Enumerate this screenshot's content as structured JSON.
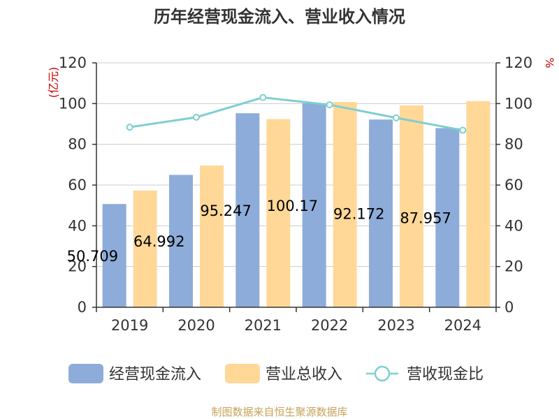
{
  "chart_data": {
    "type": "bar",
    "title": "历年经营现金流入、营业收入情况",
    "categories": [
      "2019",
      "2020",
      "2021",
      "2022",
      "2023",
      "2024"
    ],
    "series": [
      {
        "name": "经营现金流入",
        "type": "bar",
        "axis": "left",
        "color": "#8eacd9",
        "values": [
          50.71,
          64.99,
          95.25,
          100.17,
          92.17,
          87.96
        ],
        "labels": [
          "50.709",
          "64.992",
          "95.247",
          "100.17",
          "92.172",
          "87.957"
        ]
      },
      {
        "name": "营业总收入",
        "type": "bar",
        "axis": "left",
        "color": "#ffd898",
        "values": [
          57.3,
          69.6,
          92.4,
          100.8,
          99.1,
          101.2
        ]
      },
      {
        "name": "营收现金比",
        "type": "line",
        "axis": "right",
        "color": "#7fcfcf",
        "values": [
          88.4,
          93.3,
          103.0,
          99.4,
          93.0,
          86.9
        ]
      }
    ],
    "y_left": {
      "unit": "(亿元)",
      "min": 0,
      "max": 120,
      "ticks": [
        0,
        20,
        40,
        60,
        80,
        100,
        120
      ]
    },
    "y_right": {
      "unit": "%",
      "min": 0,
      "max": 120,
      "ticks": [
        0,
        20,
        40,
        60,
        80,
        100,
        120
      ]
    },
    "grid": true,
    "legend_position": "bottom"
  },
  "source_note": "制图数据来自恒生聚源数据库"
}
